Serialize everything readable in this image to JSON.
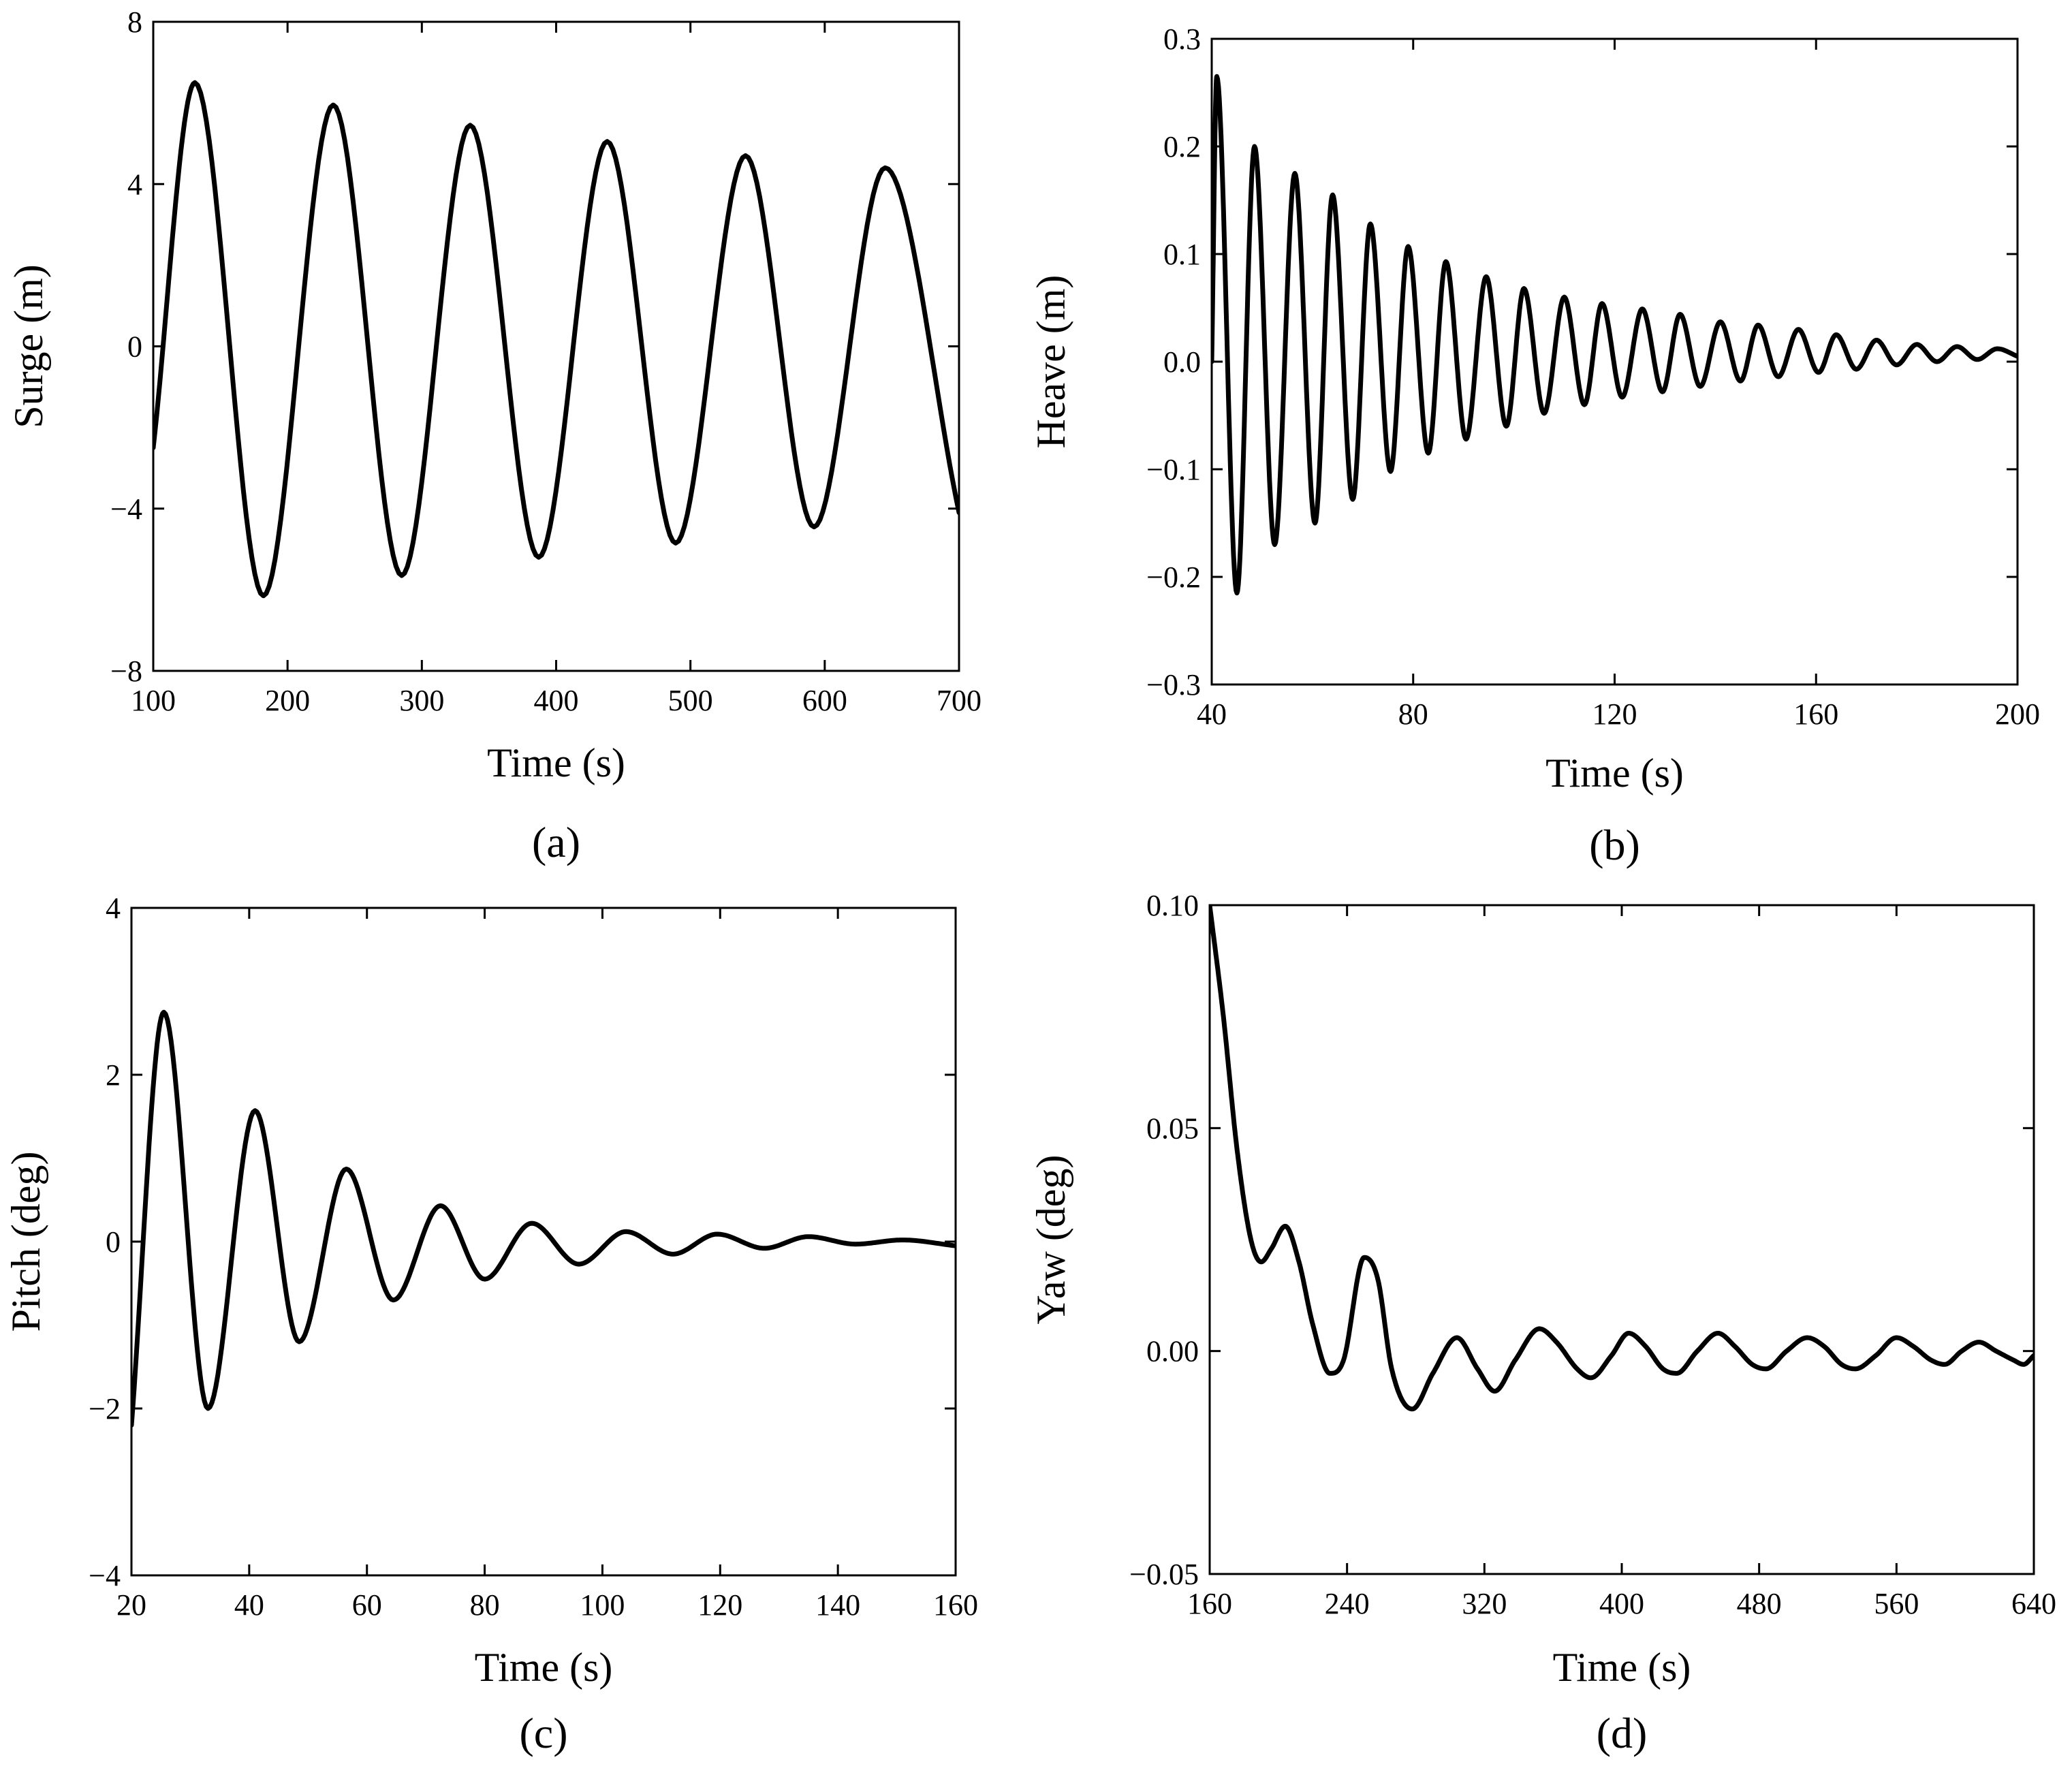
{
  "chart_data": [
    {
      "panel": "(a)",
      "type": "line",
      "xlabel": "Time (s)",
      "ylabel": "Surge (m)",
      "xlim": [
        100,
        700
      ],
      "ylim": [
        -8,
        8
      ],
      "xticks": [
        100,
        200,
        300,
        400,
        500,
        600,
        700
      ],
      "yticks": [
        -8,
        -4,
        0,
        4,
        8
      ],
      "xtick_labels": [
        "100",
        "200",
        "300",
        "400",
        "500",
        "600",
        "700"
      ],
      "ytick_labels": [
        "−8",
        "−4",
        "0",
        "4",
        "8"
      ],
      "series": [
        {
          "name": "Surge",
          "points": [
            [
              100,
              -2.5
            ],
            [
              131,
              6.5
            ],
            [
              182,
              -6.15
            ],
            [
              234,
              5.95
            ],
            [
              285,
              -5.65
            ],
            [
              336,
              5.45
            ],
            [
              387,
              -5.2
            ],
            [
              438,
              5.05
            ],
            [
              489,
              -4.85
            ],
            [
              541,
              4.7
            ],
            [
              592,
              -4.45
            ],
            [
              645,
              4.4
            ],
            [
              700,
              -4.1
            ]
          ]
        }
      ]
    },
    {
      "panel": "(b)",
      "type": "line",
      "xlabel": "Time (s)",
      "ylabel": "Heave (m)",
      "xlim": [
        40,
        200
      ],
      "ylim": [
        -0.3,
        0.3
      ],
      "xticks": [
        40,
        80,
        120,
        160,
        200
      ],
      "yticks": [
        -0.3,
        -0.2,
        -0.1,
        0.0,
        0.1,
        0.2,
        0.3
      ],
      "xtick_labels": [
        "40",
        "80",
        "120",
        "160",
        "200"
      ],
      "ytick_labels": [
        "−0.3",
        "−0.2",
        "−0.1",
        "0.0",
        "0.1",
        "0.2",
        "0.3"
      ],
      "series": [
        {
          "name": "Heave",
          "points": [
            [
              40,
              0.0
            ],
            [
              41,
              0.265
            ],
            [
              45,
              -0.215
            ],
            [
              48.5,
              0.2
            ],
            [
              52.5,
              -0.17
            ],
            [
              56.5,
              0.175
            ],
            [
              60.5,
              -0.15
            ],
            [
              64,
              0.155
            ],
            [
              68,
              -0.128
            ],
            [
              71.5,
              0.128
            ],
            [
              75.5,
              -0.102
            ],
            [
              79,
              0.107
            ],
            [
              83,
              -0.085
            ],
            [
              86.5,
              0.093
            ],
            [
              90.5,
              -0.072
            ],
            [
              94.5,
              0.079
            ],
            [
              98.5,
              -0.06
            ],
            [
              102,
              0.068
            ],
            [
              106,
              -0.048
            ],
            [
              110,
              0.06
            ],
            [
              114,
              -0.04
            ],
            [
              117.5,
              0.054
            ],
            [
              121.5,
              -0.033
            ],
            [
              125.5,
              0.049
            ],
            [
              129.5,
              -0.028
            ],
            [
              133,
              0.044
            ],
            [
              137,
              -0.023
            ],
            [
              141,
              0.037
            ],
            [
              145,
              -0.018
            ],
            [
              148.5,
              0.034
            ],
            [
              152.5,
              -0.014
            ],
            [
              156.5,
              0.03
            ],
            [
              160.5,
              -0.01
            ],
            [
              164,
              0.025
            ],
            [
              168,
              -0.007
            ],
            [
              172,
              0.02
            ],
            [
              176,
              -0.003
            ],
            [
              180,
              0.016
            ],
            [
              184,
              0.0
            ],
            [
              188,
              0.014
            ],
            [
              192,
              0.002
            ],
            [
              196,
              0.012
            ],
            [
              200,
              0.005
            ]
          ]
        }
      ]
    },
    {
      "panel": "(c)",
      "type": "line",
      "xlabel": "Time (s)",
      "ylabel": "Pitch (deg)",
      "xlim": [
        20,
        160
      ],
      "ylim": [
        -4,
        4
      ],
      "xticks": [
        20,
        40,
        60,
        80,
        100,
        120,
        140,
        160
      ],
      "yticks": [
        -4,
        -2,
        0,
        2,
        4
      ],
      "xtick_labels": [
        "20",
        "40",
        "60",
        "80",
        "100",
        "120",
        "140",
        "160"
      ],
      "ytick_labels": [
        "−4",
        "−2",
        "0",
        "2",
        "4"
      ],
      "series": [
        {
          "name": "Pitch",
          "points": [
            [
              20,
              -2.2
            ],
            [
              25.5,
              2.75
            ],
            [
              33,
              -2.0
            ],
            [
              41,
              1.57
            ],
            [
              48.5,
              -1.2
            ],
            [
              56.5,
              0.87
            ],
            [
              64.5,
              -0.7
            ],
            [
              72.5,
              0.43
            ],
            [
              80,
              -0.45
            ],
            [
              88,
              0.22
            ],
            [
              96,
              -0.27
            ],
            [
              104,
              0.12
            ],
            [
              112,
              -0.15
            ],
            [
              119.5,
              0.09
            ],
            [
              127.5,
              -0.08
            ],
            [
              135,
              0.06
            ],
            [
              143,
              -0.03
            ],
            [
              151,
              0.02
            ],
            [
              160,
              -0.05
            ]
          ]
        }
      ]
    },
    {
      "panel": "(d)",
      "type": "line",
      "xlabel": "Time (s)",
      "ylabel": "Yaw (deg)",
      "xlim": [
        160,
        640
      ],
      "ylim": [
        -0.05,
        0.1
      ],
      "xticks": [
        160,
        240,
        320,
        400,
        480,
        560,
        640
      ],
      "yticks": [
        -0.05,
        0.0,
        0.05,
        0.1
      ],
      "xtick_labels": [
        "160",
        "240",
        "320",
        "400",
        "480",
        "560",
        "640"
      ],
      "ytick_labels": [
        "−0.05",
        "0.00",
        "0.05",
        "0.10"
      ],
      "series": [
        {
          "name": "Yaw",
          "points": [
            [
              160,
              0.1
            ],
            [
              168,
              0.075
            ],
            [
              176,
              0.045
            ],
            [
              184,
              0.025
            ],
            [
              190,
              0.02
            ],
            [
              196,
              0.023
            ],
            [
              204,
              0.028
            ],
            [
              212,
              0.02
            ],
            [
              220,
              0.006
            ],
            [
              230,
              -0.005
            ],
            [
              238,
              -0.002
            ],
            [
              250,
              0.021
            ],
            [
              258,
              0.016
            ],
            [
              266,
              -0.004
            ],
            [
              278,
              -0.013
            ],
            [
              290,
              -0.005
            ],
            [
              304,
              0.003
            ],
            [
              316,
              -0.004
            ],
            [
              326,
              -0.009
            ],
            [
              338,
              -0.002
            ],
            [
              352,
              0.005
            ],
            [
              362,
              0.002
            ],
            [
              374,
              -0.004
            ],
            [
              382,
              -0.006
            ],
            [
              394,
              -0.001
            ],
            [
              404,
              0.004
            ],
            [
              414,
              0.001
            ],
            [
              424,
              -0.004
            ],
            [
              432,
              -0.005
            ],
            [
              444,
              0.0
            ],
            [
              456,
              0.004
            ],
            [
              466,
              0.001
            ],
            [
              476,
              -0.003
            ],
            [
              484,
              -0.004
            ],
            [
              496,
              0.0
            ],
            [
              508,
              0.003
            ],
            [
              518,
              0.001
            ],
            [
              528,
              -0.003
            ],
            [
              536,
              -0.004
            ],
            [
              548,
              -0.001
            ],
            [
              560,
              0.003
            ],
            [
              570,
              0.001
            ],
            [
              580,
              -0.002
            ],
            [
              588,
              -0.003
            ],
            [
              598,
              0.0
            ],
            [
              608,
              0.002
            ],
            [
              618,
              0.0
            ],
            [
              628,
              -0.002
            ],
            [
              634,
              -0.003
            ],
            [
              640,
              -0.001
            ]
          ]
        }
      ]
    }
  ]
}
